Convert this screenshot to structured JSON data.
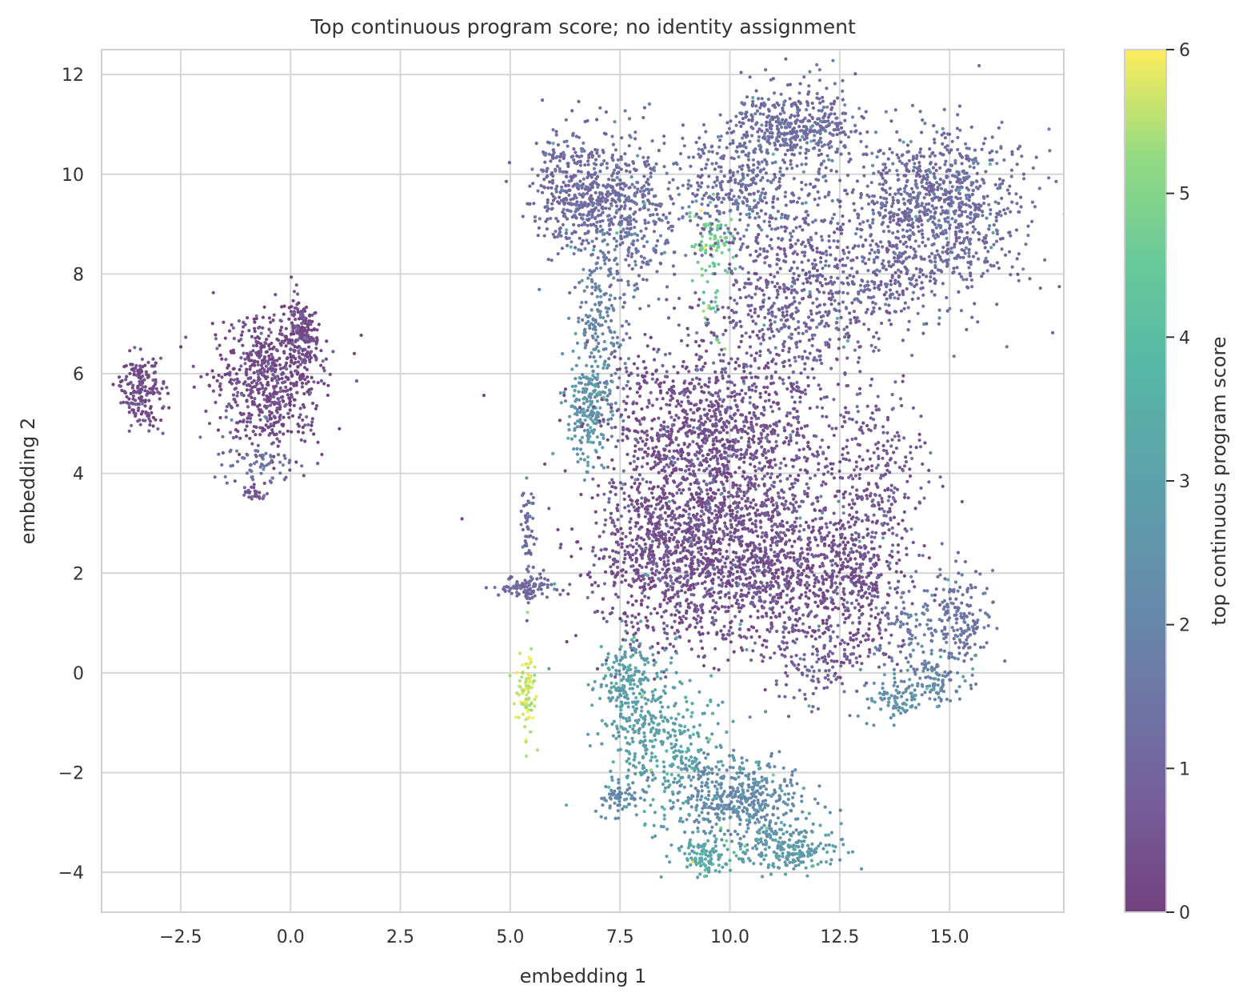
{
  "chart_data": {
    "type": "scatter",
    "title": "Top continuous program score; no identity assignment",
    "xlabel": "embedding 1",
    "ylabel": "embedding 2",
    "xlim": [
      -4.3,
      17.6
    ],
    "ylim": [
      -4.8,
      12.5
    ],
    "xticks": [
      -2.5,
      0.0,
      2.5,
      5.0,
      7.5,
      10.0,
      12.5,
      15.0
    ],
    "xtick_labels": [
      "−2.5",
      "0.0",
      "2.5",
      "5.0",
      "7.5",
      "10.0",
      "12.5",
      "15.0"
    ],
    "yticks": [
      -4,
      -2,
      0,
      2,
      4,
      6,
      8,
      10,
      12
    ],
    "ytick_labels": [
      "−4",
      "−2",
      "0",
      "2",
      "4",
      "6",
      "8",
      "10",
      "12"
    ],
    "grid": true,
    "colormap": "viridis",
    "colorbar": {
      "label": "top continuous program score",
      "range": [
        0,
        6
      ],
      "ticks": [
        0,
        1,
        2,
        3,
        4,
        5,
        6
      ],
      "tick_labels": [
        "0",
        "1",
        "2",
        "3",
        "4",
        "5",
        "6"
      ]
    },
    "clusters": [
      {
        "center": [
          -3.4,
          5.7
        ],
        "spread": [
          0.22,
          0.35
        ],
        "n": 180,
        "score": 0.1
      },
      {
        "center": [
          -0.5,
          5.9
        ],
        "spread": [
          0.6,
          0.7
        ],
        "n": 650,
        "score": 0.1
      },
      {
        "center": [
          0.25,
          6.8
        ],
        "spread": [
          0.2,
          0.35
        ],
        "n": 150,
        "score": 0.05
      },
      {
        "center": [
          -0.7,
          4.2
        ],
        "spread": [
          0.4,
          0.25
        ],
        "n": 60,
        "score": 1.2
      },
      {
        "center": [
          -0.8,
          3.6
        ],
        "spread": [
          0.15,
          0.08
        ],
        "n": 30,
        "score": 0.5
      },
      {
        "center": [
          5.4,
          1.7
        ],
        "spread": [
          0.35,
          0.12
        ],
        "n": 110,
        "score": 0.9
      },
      {
        "center": [
          5.4,
          2.9
        ],
        "spread": [
          0.07,
          0.5
        ],
        "n": 50,
        "score": 1.0
      },
      {
        "center": [
          5.35,
          -0.4
        ],
        "spread": [
          0.12,
          0.45
        ],
        "n": 90,
        "score": 5.4
      },
      {
        "center": [
          6.6,
          9.7
        ],
        "spread": [
          0.55,
          0.6
        ],
        "n": 450,
        "score": 0.9
      },
      {
        "center": [
          7.8,
          9.2
        ],
        "spread": [
          0.6,
          0.8
        ],
        "n": 350,
        "score": 1.1
      },
      {
        "center": [
          7.1,
          7.0
        ],
        "spread": [
          0.3,
          0.9
        ],
        "n": 200,
        "score": 1.6
      },
      {
        "center": [
          6.8,
          5.3
        ],
        "spread": [
          0.25,
          0.6
        ],
        "n": 200,
        "score": 2.4
      },
      {
        "center": [
          9.6,
          8.7
        ],
        "spread": [
          0.3,
          0.35
        ],
        "n": 80,
        "score": 4.5
      },
      {
        "center": [
          9.6,
          7.3
        ],
        "spread": [
          0.15,
          0.4
        ],
        "n": 25,
        "score": 4.2
      },
      {
        "center": [
          10.2,
          9.8
        ],
        "spread": [
          0.7,
          0.6
        ],
        "n": 350,
        "score": 1.1
      },
      {
        "center": [
          11.2,
          11.0
        ],
        "spread": [
          0.6,
          0.35
        ],
        "n": 300,
        "score": 1.0
      },
      {
        "center": [
          12.1,
          10.9
        ],
        "spread": [
          0.4,
          0.5
        ],
        "n": 150,
        "score": 1.0
      },
      {
        "center": [
          14.8,
          9.5
        ],
        "spread": [
          1.0,
          0.7
        ],
        "n": 800,
        "score": 1.0
      },
      {
        "center": [
          13.2,
          8.2
        ],
        "spread": [
          1.3,
          0.8
        ],
        "n": 500,
        "score": 0.8
      },
      {
        "center": [
          11.4,
          7.4
        ],
        "spread": [
          1.0,
          0.9
        ],
        "n": 450,
        "score": 0.6
      },
      {
        "center": [
          9.2,
          4.8
        ],
        "spread": [
          1.0,
          1.0
        ],
        "n": 900,
        "score": 0.2
      },
      {
        "center": [
          8.7,
          2.4
        ],
        "spread": [
          1.0,
          0.9
        ],
        "n": 1000,
        "score": 0.2
      },
      {
        "center": [
          10.7,
          2.2
        ],
        "spread": [
          0.8,
          0.9
        ],
        "n": 700,
        "score": 0.2
      },
      {
        "center": [
          11.0,
          4.5
        ],
        "spread": [
          0.9,
          1.0
        ],
        "n": 400,
        "score": 0.3
      },
      {
        "center": [
          12.7,
          1.9
        ],
        "spread": [
          0.7,
          0.8
        ],
        "n": 500,
        "score": 0.2
      },
      {
        "center": [
          13.3,
          4.0
        ],
        "spread": [
          0.6,
          1.0
        ],
        "n": 250,
        "score": 0.4
      },
      {
        "center": [
          12.0,
          0.3
        ],
        "spread": [
          0.5,
          0.5
        ],
        "n": 120,
        "score": 0.6
      },
      {
        "center": [
          15.3,
          1.1
        ],
        "spread": [
          0.3,
          0.5
        ],
        "n": 150,
        "score": 1.2
      },
      {
        "center": [
          14.7,
          -0.2
        ],
        "spread": [
          0.35,
          0.25
        ],
        "n": 80,
        "score": 1.8
      },
      {
        "center": [
          13.8,
          -0.5
        ],
        "spread": [
          0.4,
          0.2
        ],
        "n": 90,
        "score": 2.2
      },
      {
        "center": [
          14.2,
          0.9
        ],
        "spread": [
          0.5,
          0.6
        ],
        "n": 120,
        "score": 1.5
      },
      {
        "center": [
          7.8,
          -0.3
        ],
        "spread": [
          0.4,
          0.5
        ],
        "n": 250,
        "score": 2.6
      },
      {
        "center": [
          8.6,
          -1.6
        ],
        "spread": [
          0.7,
          0.7
        ],
        "n": 300,
        "score": 2.8
      },
      {
        "center": [
          10.2,
          -2.5
        ],
        "spread": [
          0.7,
          0.45
        ],
        "n": 450,
        "score": 2.0
      },
      {
        "center": [
          11.4,
          -3.5
        ],
        "spread": [
          0.5,
          0.25
        ],
        "n": 200,
        "score": 2.5
      },
      {
        "center": [
          9.4,
          -3.7
        ],
        "spread": [
          0.4,
          0.2
        ],
        "n": 120,
        "score": 3.0
      },
      {
        "center": [
          7.5,
          -2.5
        ],
        "spread": [
          0.25,
          0.15
        ],
        "n": 60,
        "score": 2.0
      }
    ]
  }
}
